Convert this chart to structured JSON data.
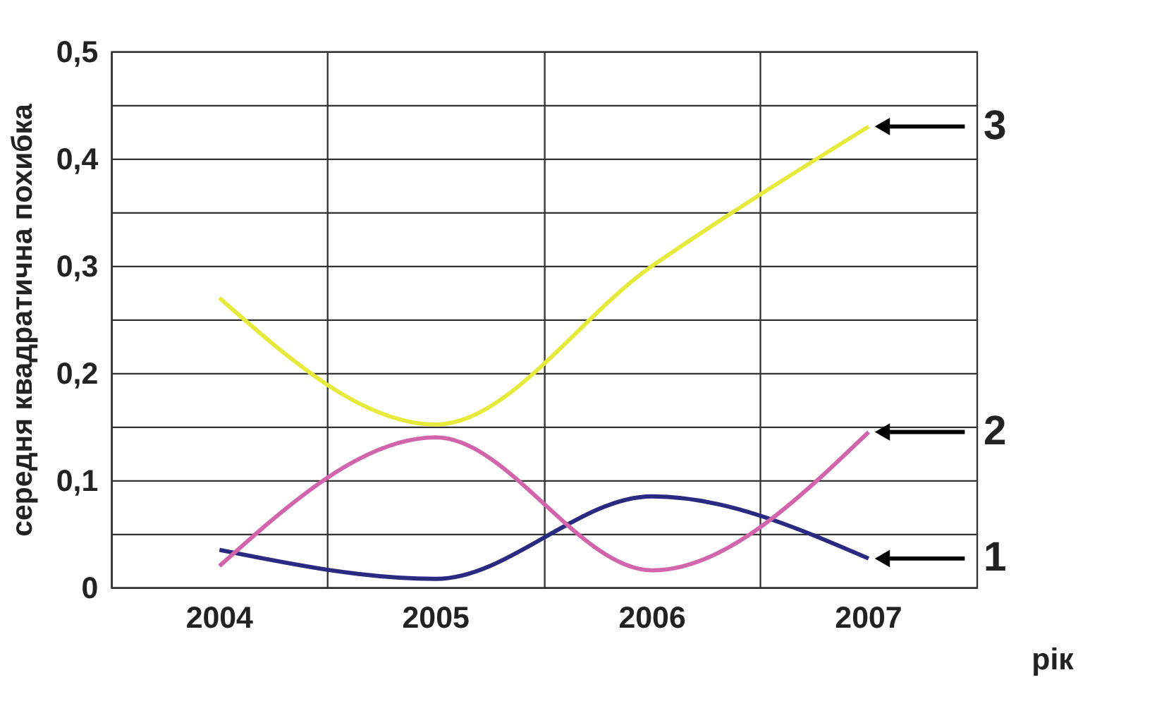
{
  "chart_data": {
    "type": "line",
    "xlabel": "рік",
    "ylabel": "середня квадратична похибка",
    "categories": [
      "2004",
      "2005",
      "2006",
      "2007"
    ],
    "series": [
      {
        "color": "#2b2a82",
        "values": [
          0.035,
          0.008,
          0.085,
          0.027
        ]
      },
      {
        "color": "#d264ac",
        "values": [
          0.02,
          0.14,
          0.016,
          0.145
        ]
      },
      {
        "color": "#e6ea3c",
        "values": [
          0.27,
          0.152,
          0.3,
          0.43
        ]
      }
    ],
    "ylim": [
      0,
      0.5
    ],
    "yticks": [
      {
        "value": 0,
        "label": "0"
      },
      {
        "value": 0.05,
        "label": null
      },
      {
        "value": 0.1,
        "label": "0,1"
      },
      {
        "value": 0.15,
        "label": null
      },
      {
        "value": 0.2,
        "label": "0,2"
      },
      {
        "value": 0.25,
        "label": null
      },
      {
        "value": 0.3,
        "label": "0,3"
      },
      {
        "value": 0.35,
        "label": null
      },
      {
        "value": 0.4,
        "label": "0,4"
      },
      {
        "value": 0.45,
        "label": null
      },
      {
        "value": 0.5,
        "label": "0,5"
      }
    ],
    "grid": true,
    "marker": "none",
    "line_style": "solid",
    "annotations": [
      {
        "text": "1",
        "x": "2007",
        "y": 0.027
      },
      {
        "text": "2",
        "x": "2007",
        "y": 0.145
      },
      {
        "text": "3",
        "x": "2007",
        "y": 0.43
      }
    ]
  }
}
